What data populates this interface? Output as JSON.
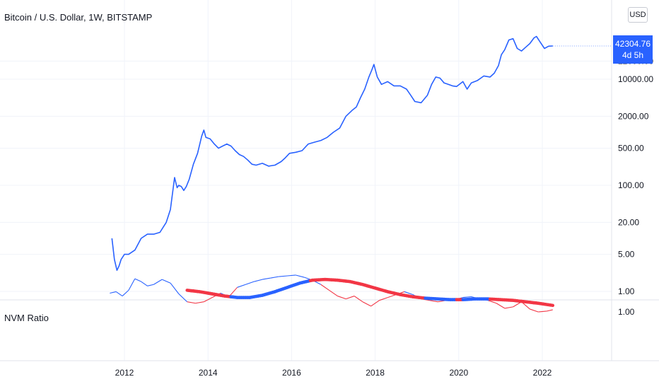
{
  "header": {
    "title": "Bitcoin / U.S. Dollar, 1W, BITSTAMP",
    "currency": "USD"
  },
  "price_label": {
    "price": "42304.76",
    "countdown": "4d 5h"
  },
  "indicator": {
    "title": "NVM Ratio",
    "axis_tick": "1.00"
  },
  "colors": {
    "blue": "#2962ff",
    "red": "#f23645",
    "price_line": "#2962ff"
  },
  "chart_data": [
    {
      "type": "line",
      "title": "Bitcoin / U.S. Dollar, 1W, BITSTAMP",
      "y_scale": "log",
      "y_tick_labels": [
        "22000.00",
        "10000.00",
        "2000.00",
        "500.00",
        "100.00",
        "20.00",
        "5.00",
        "1.00"
      ],
      "y_ticks": [
        22000,
        10000,
        2000,
        500,
        100,
        20,
        5,
        1
      ],
      "x_tick_labels": [
        "2012",
        "2014",
        "2016",
        "2018",
        "2020",
        "2022"
      ],
      "x_ticks": [
        2012,
        2014,
        2016,
        2018,
        2020,
        2022
      ],
      "series": [
        {
          "x": [
            2011.7,
            2011.76,
            2011.82,
            2011.87,
            2011.92,
            2012.0,
            2012.1,
            2012.25,
            2012.4,
            2012.55,
            2012.7,
            2012.85,
            2013.0,
            2013.1,
            2013.2,
            2013.26,
            2013.3,
            2013.36,
            2013.42,
            2013.48,
            2013.55,
            2013.65,
            2013.75,
            2013.85,
            2013.9,
            2013.95,
            2014.05,
            2014.15,
            2014.25,
            2014.35,
            2014.45,
            2014.55,
            2014.65,
            2014.75,
            2014.85,
            2014.95,
            2015.05,
            2015.15,
            2015.3,
            2015.45,
            2015.6,
            2015.75,
            2015.85,
            2015.95,
            2016.1,
            2016.25,
            2016.4,
            2016.55,
            2016.7,
            2016.85,
            2017.0,
            2017.15,
            2017.3,
            2017.45,
            2017.55,
            2017.65,
            2017.75,
            2017.85,
            2017.92,
            2017.97,
            2018.05,
            2018.15,
            2018.3,
            2018.45,
            2018.6,
            2018.75,
            2018.85,
            2018.95,
            2019.1,
            2019.25,
            2019.35,
            2019.45,
            2019.55,
            2019.65,
            2019.75,
            2019.85,
            2019.95,
            2020.1,
            2020.2,
            2020.3,
            2020.45,
            2020.6,
            2020.75,
            2020.85,
            2020.95,
            2021.02,
            2021.1,
            2021.2,
            2021.3,
            2021.4,
            2021.5,
            2021.6,
            2021.7,
            2021.8,
            2021.86,
            2021.95,
            2022.05,
            2022.15,
            2022.25
          ],
          "y": [
            10,
            4,
            2.5,
            3,
            4,
            5,
            5,
            6,
            10,
            12,
            12,
            13,
            20,
            35,
            140,
            90,
            100,
            95,
            80,
            95,
            130,
            250,
            400,
            850,
            1100,
            800,
            750,
            600,
            500,
            550,
            600,
            550,
            450,
            380,
            350,
            300,
            250,
            240,
            260,
            230,
            240,
            280,
            330,
            400,
            420,
            450,
            600,
            650,
            700,
            800,
            1000,
            1200,
            2000,
            2600,
            3000,
            4500,
            6500,
            11000,
            15000,
            19000,
            11000,
            8000,
            9000,
            7500,
            7500,
            6500,
            5000,
            3800,
            3600,
            5000,
            8000,
            11000,
            10500,
            8500,
            8000,
            7500,
            7300,
            9000,
            6500,
            8500,
            9500,
            11500,
            11000,
            13000,
            18000,
            29000,
            36000,
            55000,
            58000,
            38000,
            34000,
            40000,
            47000,
            60000,
            64000,
            50000,
            38000,
            42000,
            42300
          ]
        }
      ]
    },
    {
      "type": "line",
      "title": "NVM Ratio",
      "y_tick_labels": [
        "1.00"
      ],
      "series": [
        {
          "x": [
            2011.65,
            2011.8,
            2011.95,
            2012.1,
            2012.25,
            2012.4,
            2012.55,
            2012.7,
            2012.9,
            2013.1,
            2013.3,
            2013.5,
            2013.7,
            2013.9,
            2014.1,
            2014.3,
            2014.5,
            2014.7,
            2014.9,
            2015.1,
            2015.3,
            2015.5,
            2015.7,
            2015.9,
            2016.1,
            2016.3,
            2016.5,
            2016.7,
            2016.9,
            2017.1,
            2017.3,
            2017.5,
            2017.7,
            2017.9,
            2018.1,
            2018.3,
            2018.5,
            2018.7,
            2018.9,
            2019.1,
            2019.3,
            2019.5,
            2019.7,
            2019.9,
            2020.1,
            2020.3,
            2020.5,
            2020.7,
            2020.9,
            2021.1,
            2021.3,
            2021.5,
            2021.7,
            2021.9,
            2022.1,
            2022.25
          ],
          "y": [
            0.74,
            0.72,
            0.78,
            0.7,
            0.54,
            0.58,
            0.64,
            0.62,
            0.55,
            0.6,
            0.75,
            0.86,
            0.88,
            0.86,
            0.8,
            0.74,
            0.79,
            0.66,
            0.62,
            0.58,
            0.55,
            0.53,
            0.51,
            0.5,
            0.49,
            0.52,
            0.56,
            0.62,
            0.7,
            0.78,
            0.82,
            0.78,
            0.86,
            0.92,
            0.84,
            0.8,
            0.76,
            0.72,
            0.76,
            0.82,
            0.84,
            0.86,
            0.84,
            0.83,
            0.8,
            0.79,
            0.82,
            0.84,
            0.88,
            0.95,
            0.93,
            0.86,
            0.96,
            1.0,
            0.99,
            0.97
          ]
        },
        {
          "x": [
            2013.5,
            2013.8,
            2014.1,
            2014.4,
            2014.7,
            2015.0,
            2015.3,
            2015.6,
            2015.9,
            2016.2,
            2016.5,
            2016.8,
            2017.1,
            2017.4,
            2017.7,
            2018.0,
            2018.3,
            2018.6,
            2018.9,
            2019.2,
            2019.5,
            2019.8,
            2020.1,
            2020.4,
            2020.7,
            2021.0,
            2021.3,
            2021.6,
            2021.9,
            2022.25
          ],
          "y": [
            0.7,
            0.72,
            0.75,
            0.78,
            0.8,
            0.8,
            0.77,
            0.72,
            0.66,
            0.6,
            0.56,
            0.55,
            0.56,
            0.58,
            0.62,
            0.67,
            0.72,
            0.76,
            0.79,
            0.81,
            0.82,
            0.83,
            0.83,
            0.82,
            0.82,
            0.83,
            0.84,
            0.86,
            0.88,
            0.91
          ],
          "colors_by_x": [
            {
              "from": 2013.5,
              "to": 2014.55,
              "color": "red"
            },
            {
              "from": 2014.55,
              "to": 2016.45,
              "color": "blue"
            },
            {
              "from": 2016.45,
              "to": 2019.2,
              "color": "red"
            },
            {
              "from": 2019.2,
              "to": 2019.95,
              "color": "blue"
            },
            {
              "from": 2019.95,
              "to": 2020.1,
              "color": "red"
            },
            {
              "from": 2020.1,
              "to": 2020.75,
              "color": "blue"
            },
            {
              "from": 2020.75,
              "to": 2022.25,
              "color": "red"
            }
          ]
        }
      ]
    }
  ]
}
